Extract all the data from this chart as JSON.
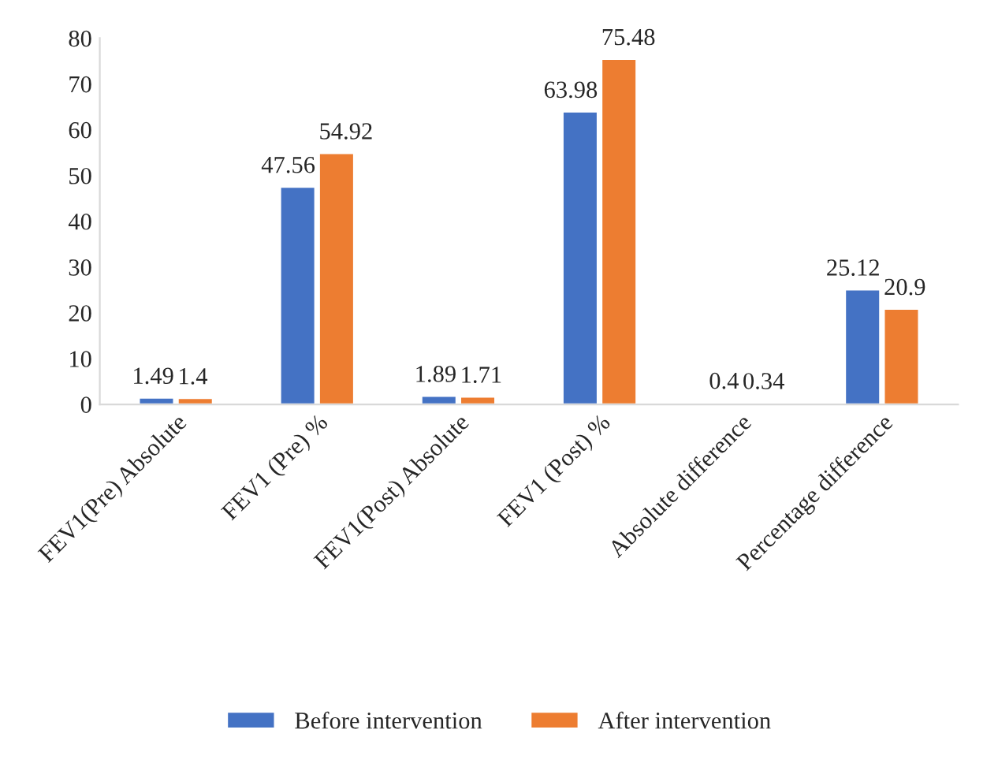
{
  "chart_data": {
    "type": "bar",
    "categories": [
      "FEV1(Pre) Absolute",
      "FEV1 (Pre) %",
      "FEV1(Post) Absolute",
      "FEV1 (Post) %",
      "Absolute difference",
      "Percentage difference"
    ],
    "series": [
      {
        "name": "Before intervention",
        "color": "#4472c4",
        "values": [
          1.49,
          47.56,
          1.89,
          63.98,
          0.4,
          25.12
        ]
      },
      {
        "name": "After intervention",
        "color": "#ed7d31",
        "values": [
          1.4,
          54.92,
          1.71,
          75.48,
          0.34,
          20.9
        ]
      }
    ],
    "ylim": [
      0,
      80
    ],
    "yticks": [
      0,
      10,
      20,
      30,
      40,
      50,
      60,
      70,
      80
    ],
    "data_labels": true,
    "grid": false,
    "legend": "bottom"
  }
}
